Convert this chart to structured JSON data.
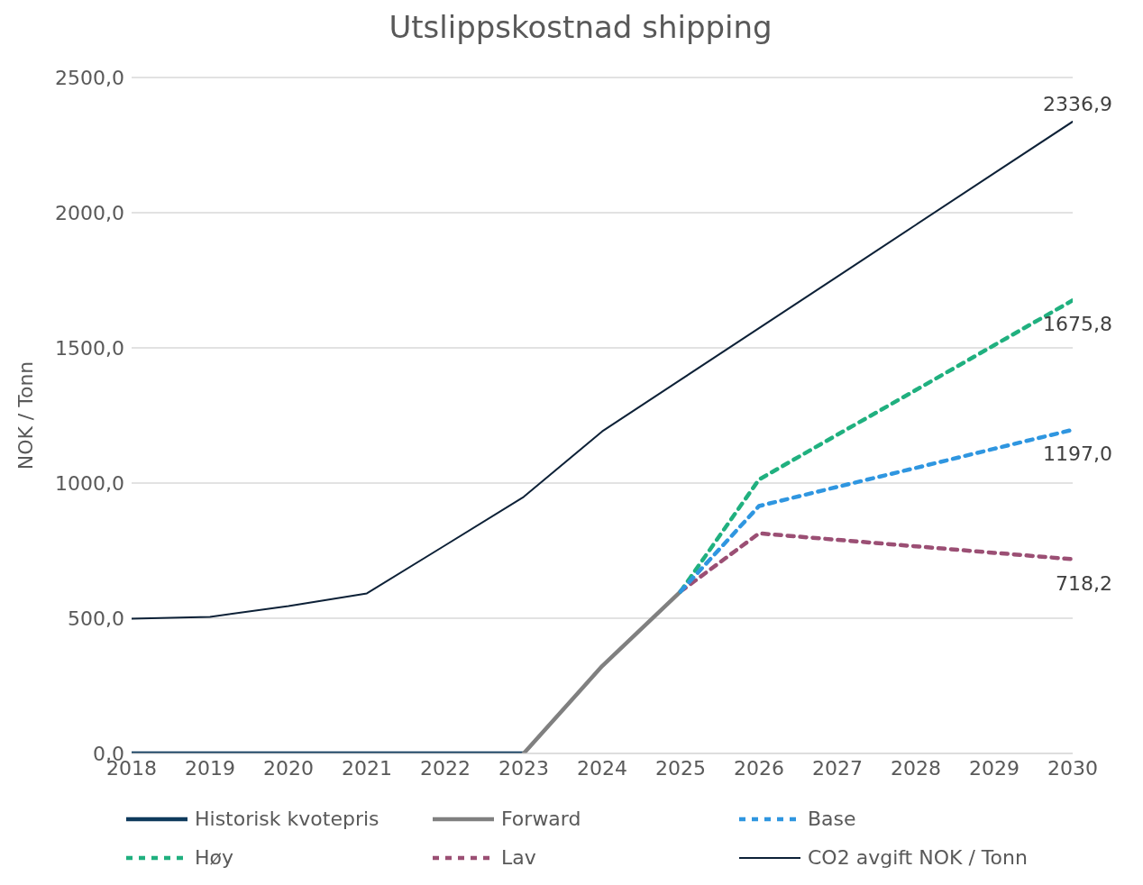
{
  "chart_data": {
    "type": "line",
    "title": "Utslippskostnad shipping",
    "ylabel": "NOK / Tonn",
    "x": [
      2018,
      2019,
      2020,
      2021,
      2022,
      2023,
      2024,
      2025,
      2026,
      2027,
      2028,
      2029,
      2030
    ],
    "xlim": [
      2018,
      2030
    ],
    "xticks": [
      2018,
      2019,
      2020,
      2021,
      2022,
      2023,
      2024,
      2025,
      2026,
      2027,
      2028,
      2029,
      2030
    ],
    "ylim": [
      0,
      2500
    ],
    "yticks": [
      {
        "value": 0,
        "label": "0,0"
      },
      {
        "value": 500,
        "label": "500,0"
      },
      {
        "value": 1000,
        "label": "1000,0"
      },
      {
        "value": 1500,
        "label": "1500,0"
      },
      {
        "value": 2000,
        "label": "2000,0"
      },
      {
        "value": 2500,
        "label": "2500,0"
      }
    ],
    "grid": "y",
    "legend": "bottom",
    "marker": "none",
    "series": [
      {
        "name": "Historisk kvotepris",
        "color": "#0e3a5c",
        "line_style": "solid",
        "values": [
          0,
          0,
          0,
          0,
          0,
          0,
          null,
          null,
          null,
          null,
          null,
          null,
          null
        ]
      },
      {
        "name": "Forward",
        "color": "#808080",
        "line_style": "solid",
        "values": [
          null,
          null,
          null,
          null,
          null,
          0,
          323,
          599,
          null,
          null,
          null,
          null,
          null
        ]
      },
      {
        "name": "Base",
        "color": "#2f96e0",
        "line_style": "dashed",
        "values": [
          null,
          null,
          null,
          null,
          null,
          null,
          null,
          599,
          915,
          986,
          1056,
          1127,
          1197.0
        ],
        "value_labels": [
          null,
          null,
          null,
          null,
          null,
          null,
          null,
          null,
          null,
          null,
          null,
          null,
          "1197,0"
        ]
      },
      {
        "name": "Høy",
        "color": "#20b07f",
        "line_style": "dashed",
        "values": [
          null,
          null,
          null,
          null,
          null,
          null,
          null,
          599,
          1013,
          1179,
          1344,
          1510,
          1675.8
        ],
        "value_labels": [
          null,
          null,
          null,
          null,
          null,
          null,
          null,
          null,
          null,
          null,
          null,
          null,
          "1675,8"
        ]
      },
      {
        "name": "Lav",
        "color": "#9b4f74",
        "line_style": "dashed",
        "values": [
          null,
          null,
          null,
          null,
          null,
          null,
          null,
          599,
          814,
          790,
          766,
          742,
          718.2
        ],
        "value_labels": [
          null,
          null,
          null,
          null,
          null,
          null,
          null,
          null,
          null,
          null,
          null,
          null,
          "718,2"
        ]
      },
      {
        "name": "CO2 avgift NOK / Tonn",
        "color": "#0d2137",
        "line_style": "solid",
        "values": [
          498,
          505,
          545,
          592,
          770,
          949,
          1191,
          1382,
          1573,
          1764,
          1955,
          2146,
          2336.9
        ],
        "value_labels": [
          null,
          null,
          null,
          null,
          null,
          null,
          null,
          null,
          null,
          null,
          null,
          null,
          "2336,9"
        ]
      }
    ]
  }
}
